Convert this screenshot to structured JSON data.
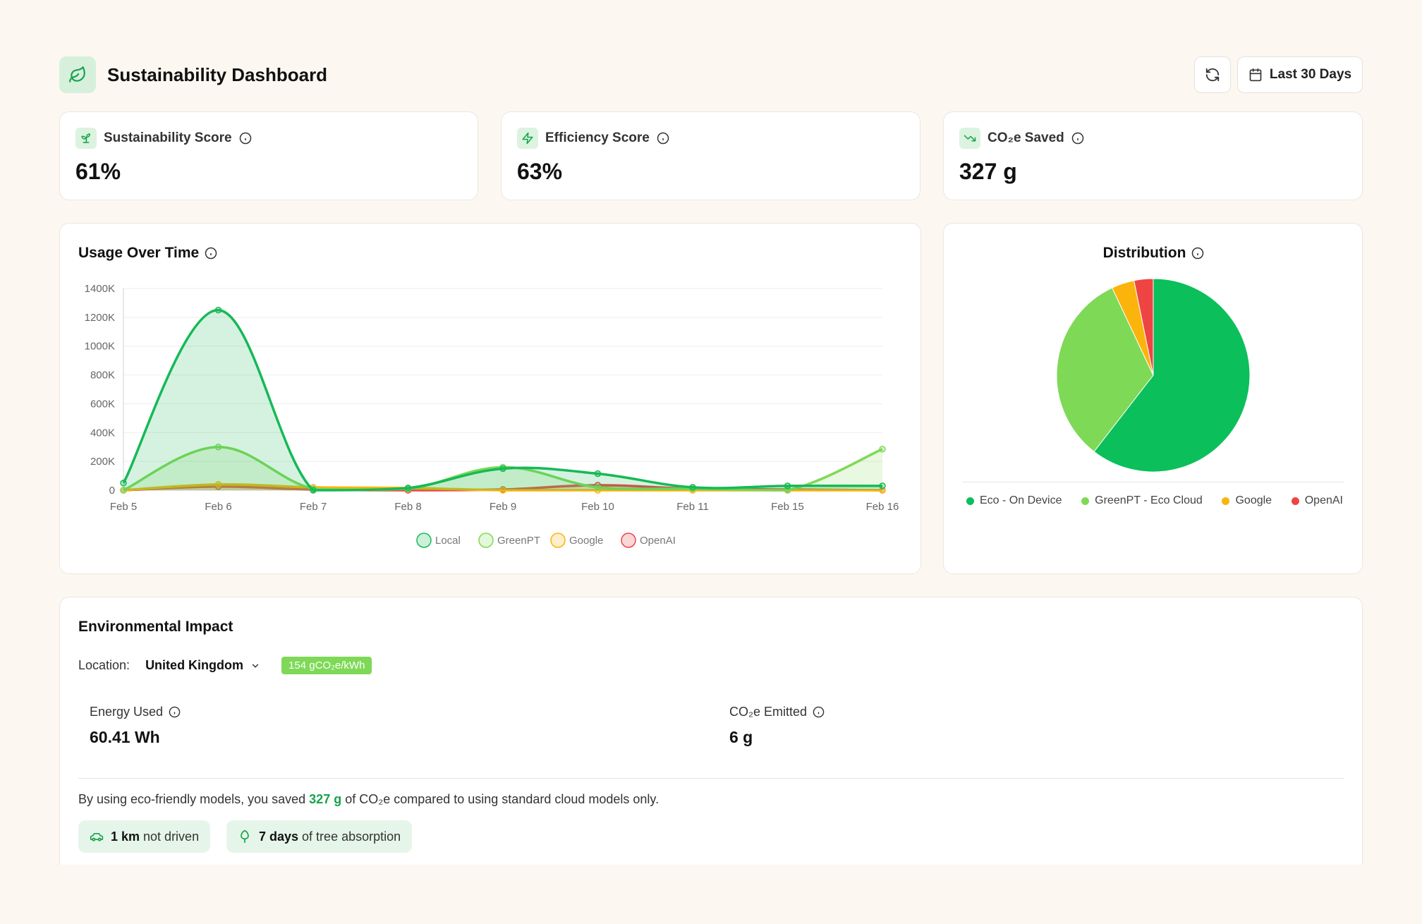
{
  "header": {
    "title": "Sustainability Dashboard",
    "date_range": "Last 30 Days"
  },
  "stats": [
    {
      "label": "Sustainability Score",
      "value": "61%",
      "icon": "sprout-icon"
    },
    {
      "label": "Efficiency Score",
      "value": "63%",
      "icon": "zap-icon"
    },
    {
      "label": "CO₂e Saved",
      "value": "327 g",
      "icon": "trending-down-icon"
    }
  ],
  "usage_chart": {
    "title": "Usage Over Time"
  },
  "distribution": {
    "title": "Distribution"
  },
  "chart_data": [
    {
      "type": "area",
      "title": "Usage Over Time",
      "categories": [
        "Feb 5",
        "Feb 6",
        "Feb 7",
        "Feb 8",
        "Feb 9",
        "Feb 10",
        "Feb 11",
        "Feb 15",
        "Feb 16"
      ],
      "y_ticks": [
        "0",
        "200K",
        "400K",
        "600K",
        "800K",
        "1000K",
        "1200K",
        "1400K"
      ],
      "ylim": [
        0,
        1400000
      ],
      "grid": true,
      "legend_position": "bottom",
      "series": [
        {
          "name": "Local",
          "color": "#16b957",
          "values": [
            50000,
            1250000,
            0,
            15000,
            150000,
            115000,
            20000,
            30000,
            30000
          ]
        },
        {
          "name": "GreenPT",
          "color": "#7ed957",
          "values": [
            0,
            300000,
            10000,
            10000,
            160000,
            20000,
            10000,
            0,
            285000
          ]
        },
        {
          "name": "Google",
          "color": "#fbb40c",
          "values": [
            0,
            40000,
            20000,
            15000,
            0,
            0,
            0,
            0,
            0
          ]
        },
        {
          "name": "OpenAI",
          "color": "#ef4444",
          "values": [
            0,
            25000,
            5000,
            0,
            5000,
            35000,
            10000,
            5000,
            0
          ]
        }
      ]
    },
    {
      "type": "pie",
      "title": "Distribution",
      "legend_position": "bottom",
      "series": [
        {
          "name": "Eco - On Device",
          "color": "#0bbf5b",
          "value": 60.5
        },
        {
          "name": "GreenPT - Eco Cloud",
          "color": "#7ed957",
          "value": 32.5
        },
        {
          "name": "Google",
          "color": "#fbb40c",
          "value": 3.8
        },
        {
          "name": "OpenAI",
          "color": "#ef4444",
          "value": 3.2
        }
      ]
    }
  ],
  "impact": {
    "title": "Environmental Impact",
    "location_label": "Location:",
    "location_value": "United Kingdom",
    "intensity_badge": "154 gCO₂e/kWh",
    "energy_label": "Energy Used",
    "energy_value": "60.41 Wh",
    "co2_label": "CO₂e Emitted",
    "co2_value": "6 g",
    "saved_prefix": "By using eco-friendly models, you saved ",
    "saved_amount": "327 g",
    "saved_suffix": " of CO₂e compared to using standard cloud models only.",
    "pill_km_bold": "1 km",
    "pill_km_text": " not driven",
    "pill_tree_bold": "7 days",
    "pill_tree_text": " of tree absorption"
  }
}
